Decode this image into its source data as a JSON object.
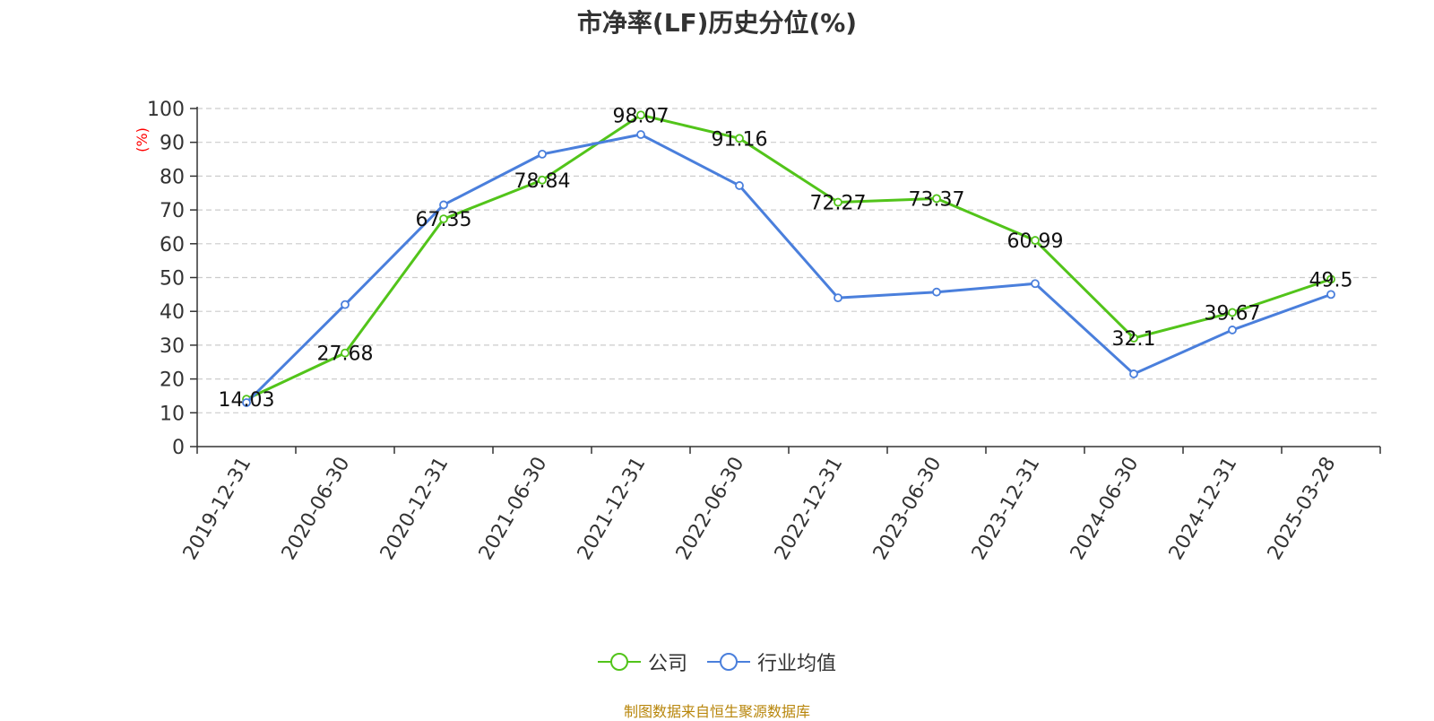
{
  "chart_data": {
    "type": "line",
    "title": "市净率(LF)历史分位(%)",
    "ylabel": "(%)",
    "ylim": [
      0,
      100
    ],
    "yticks": [
      0,
      10,
      20,
      30,
      40,
      50,
      60,
      70,
      80,
      90,
      100
    ],
    "grid": true,
    "legend_position": "bottom-center",
    "categories": [
      "2019-12-31",
      "2020-06-30",
      "2020-12-31",
      "2021-06-30",
      "2021-12-31",
      "2022-06-30",
      "2022-12-31",
      "2023-06-30",
      "2023-12-31",
      "2024-06-30",
      "2024-12-31",
      "2025-03-28"
    ],
    "series": [
      {
        "name": "公司",
        "color": "#52c41a",
        "values": [
          14.03,
          27.68,
          67.35,
          78.84,
          98.07,
          91.16,
          72.27,
          73.37,
          60.99,
          32.1,
          39.67,
          49.5
        ],
        "labels": [
          "14.03",
          "27.68",
          "67.35",
          "78.84",
          "98.07",
          "91.16",
          "72.27",
          "73.37",
          "60.99",
          "32.1",
          "39.67",
          "49.5"
        ]
      },
      {
        "name": "行业均值",
        "color": "#4a7fdc",
        "values": [
          13.0,
          42.0,
          71.5,
          86.5,
          92.3,
          77.2,
          44.0,
          45.7,
          48.2,
          21.5,
          34.5,
          45.0
        ]
      }
    ]
  },
  "footer": {
    "source": "制图数据来自恒生聚源数据库"
  }
}
